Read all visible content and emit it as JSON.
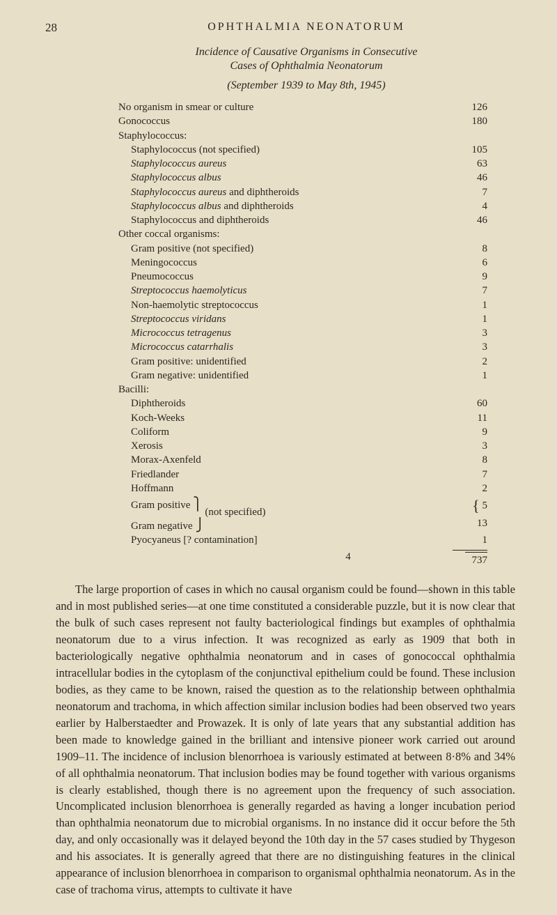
{
  "page_number": "28",
  "header": "OPHTHALMIA NEONATORUM",
  "title_line1": "Incidence of Causative Organisms in Consecutive",
  "title_line2": "Cases of Ophthalmia Neonatorum",
  "date_range": "(September 1939 to May 8th, 1945)",
  "rows": [
    {
      "label": "No organism in smear or culture",
      "value": "126",
      "indent": 0,
      "italic": false
    },
    {
      "label": "Gonococcus",
      "value": "180",
      "indent": 0,
      "italic": false
    },
    {
      "label": "Staphylococcus:",
      "value": "",
      "indent": 0,
      "italic": false
    },
    {
      "label": "Staphylococcus (not specified)",
      "value": "105",
      "indent": 1,
      "italic": false
    },
    {
      "label": "Staphylococcus aureus",
      "value": "63",
      "indent": 1,
      "italic": true
    },
    {
      "label": "Staphylococcus albus",
      "value": "46",
      "indent": 1,
      "italic": true
    },
    {
      "label": "Staphylococcus aureus and diphtheroids",
      "value": "7",
      "indent": 1,
      "italic_partial": "Staphylococcus aureus",
      "rest": " and diphtheroids"
    },
    {
      "label": "Staphylococcus albus and diphtheroids",
      "value": "4",
      "indent": 1,
      "italic_partial": "Staphylococcus albus",
      "rest": " and diphtheroids"
    },
    {
      "label": "Staphylococcus and diphtheroids",
      "value": "46",
      "indent": 1,
      "italic": false
    },
    {
      "label": "Other coccal organisms:",
      "value": "",
      "indent": 0,
      "italic": false
    },
    {
      "label": "Gram positive (not specified)",
      "value": "8",
      "indent": 1,
      "italic": false
    },
    {
      "label": "Meningococcus",
      "value": "6",
      "indent": 1,
      "italic": false
    },
    {
      "label": "Pneumococcus",
      "value": "9",
      "indent": 1,
      "italic": false
    },
    {
      "label": "Streptococcus haemolyticus",
      "value": "7",
      "indent": 1,
      "italic": true
    },
    {
      "label": "Non-haemolytic streptococcus",
      "value": "1",
      "indent": 1,
      "italic": false
    },
    {
      "label": "Streptococcus viridans",
      "value": "1",
      "indent": 1,
      "italic": true
    },
    {
      "label": "Micrococcus tetragenus",
      "value": "3",
      "indent": 1,
      "italic": true
    },
    {
      "label": "Micrococcus catarrhalis",
      "value": "3",
      "indent": 1,
      "italic": true
    },
    {
      "label": "Gram positive: unidentified",
      "value": "2",
      "indent": 1,
      "italic": false
    },
    {
      "label": "Gram negative: unidentified",
      "value": "1",
      "indent": 1,
      "italic": false
    },
    {
      "label": "Bacilli:",
      "value": "",
      "indent": 0,
      "italic": false
    },
    {
      "label": "Diphtheroids",
      "value": "60",
      "indent": 1,
      "italic": false
    },
    {
      "label": "Koch-Weeks",
      "value": "11",
      "indent": 1,
      "italic": false
    },
    {
      "label": "Coliform",
      "value": "9",
      "indent": 1,
      "italic": false
    },
    {
      "label": "Xerosis",
      "value": "3",
      "indent": 1,
      "italic": false
    },
    {
      "label": "Morax-Axenfeld",
      "value": "8",
      "indent": 1,
      "italic": false
    },
    {
      "label": "Friedlander",
      "value": "7",
      "indent": 1,
      "italic": false
    },
    {
      "label": "Hoffmann",
      "value": "2",
      "indent": 1,
      "italic": false
    }
  ],
  "brace_rows": {
    "line1": "Gram positive",
    "line2": "Gram negative",
    "suffix": "(not specified)",
    "value1": "5",
    "value2": "13"
  },
  "last_row": {
    "label": "Pyocyaneus [? contamination]",
    "value": "1",
    "indent": 1
  },
  "total": "737",
  "dagger": "4",
  "body_paragraph": "The large proportion of cases in which no causal organism could be found—shown in this table and in most published series—at one time constituted a considerable puzzle, but it is now clear that the bulk of such cases represent not faulty bacteriological findings but examples of ophthalmia neonatorum due to a virus infection. It was recognized as early as 1909 that both in bacteriologically negative ophthalmia neonatorum and in cases of gonococcal ophthalmia intracellular bodies in the cytoplasm of the conjunctival epithelium could be found. These inclusion bodies, as they came to be known, raised the question as to the relationship between ophthalmia neonatorum and trachoma, in which affection similar inclusion bodies had been observed two years earlier by Halberstaedter and Prowazek. It is only of late years that any substantial addition has been made to knowledge gained in the brilliant and intensive pioneer work carried out around 1909–11. The incidence of inclusion blenorrhoea is variously estimated at between 8·8% and 34% of all ophthalmia neonatorum. That inclusion bodies may be found together with various organisms is clearly established, though there is no agreement upon the frequency of such association. Uncomplicated inclusion blenorrhoea is generally regarded as having a longer incubation period than ophthalmia neonatorum due to microbial organisms. In no instance did it occur before the 5th day, and only occasionally was it delayed beyond the 10th day in the 57 cases studied by Thygeson and his associates. It is generally agreed that there are no distinguishing features in the clinical appearance of inclusion blenorrhoea in comparison to organismal ophthalmia neonatorum. As in the case of trachoma virus, attempts to cultivate it have"
}
